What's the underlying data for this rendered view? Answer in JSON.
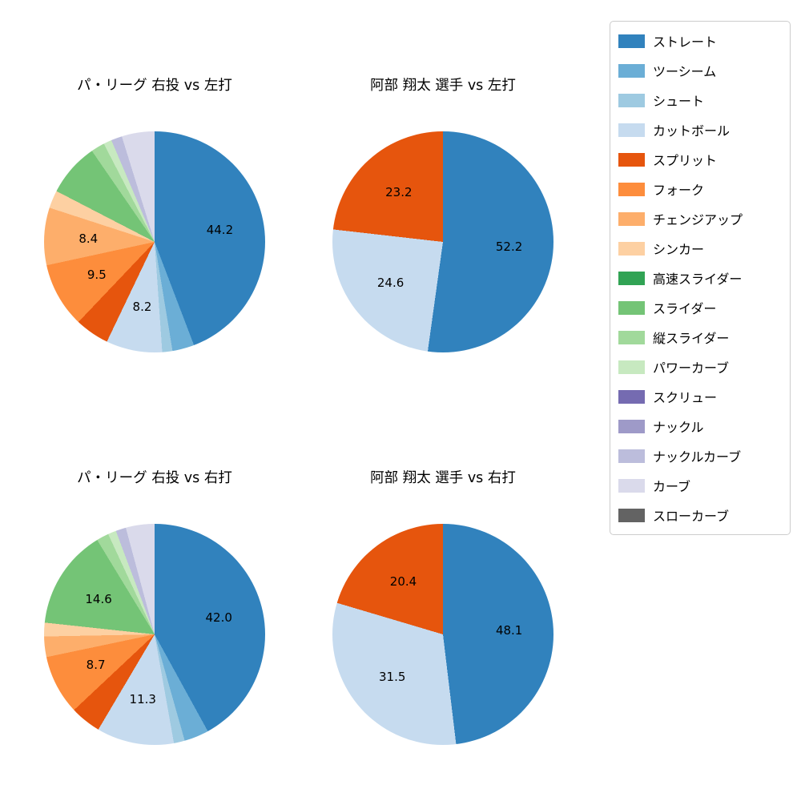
{
  "figure": {
    "background": "#ffffff",
    "label_min_value": 8.0
  },
  "legend": {
    "position": "top-right",
    "items": [
      {
        "label": "ストレート",
        "color": "#3182bd"
      },
      {
        "label": "ツーシーム",
        "color": "#6baed6"
      },
      {
        "label": "シュート",
        "color": "#9ecae1"
      },
      {
        "label": "カットボール",
        "color": "#c6dbef"
      },
      {
        "label": "スプリット",
        "color": "#e6550d"
      },
      {
        "label": "フォーク",
        "color": "#fd8d3c"
      },
      {
        "label": "チェンジアップ",
        "color": "#fdae6b"
      },
      {
        "label": "シンカー",
        "color": "#fdd0a2"
      },
      {
        "label": "高速スライダー",
        "color": "#31a354"
      },
      {
        "label": "スライダー",
        "color": "#74c476"
      },
      {
        "label": "縦スライダー",
        "color": "#a1d99b"
      },
      {
        "label": "パワーカーブ",
        "color": "#c7e9c0"
      },
      {
        "label": "スクリュー",
        "color": "#756bb1"
      },
      {
        "label": "ナックル",
        "color": "#9e9ac8"
      },
      {
        "label": "ナックルカーブ",
        "color": "#bcbddc"
      },
      {
        "label": "カーブ",
        "color": "#dadaeb"
      },
      {
        "label": "スローカーブ",
        "color": "#636363"
      }
    ]
  },
  "chart_data": [
    {
      "type": "pie",
      "title": "パ・リーグ 右投 vs 左打",
      "start_angle": "top",
      "direction": "clockwise",
      "labels": [
        "ストレート",
        "ツーシーム",
        "シュート",
        "カットボール",
        "スプリット",
        "フォーク",
        "チェンジアップ",
        "シンカー",
        "スライダー",
        "縦スライダー",
        "パワーカーブ",
        "ナックルカーブ",
        "カーブ"
      ],
      "values": [
        44.2,
        3.2,
        1.5,
        8.2,
        5.0,
        9.5,
        8.4,
        2.6,
        7.8,
        2.0,
        1.2,
        1.6,
        4.8
      ],
      "shown_value_labels": [
        "44.2",
        "8.2",
        "9.5",
        "8.4"
      ]
    },
    {
      "type": "pie",
      "title": "阿部 翔太 選手 vs 左打",
      "start_angle": "top",
      "direction": "clockwise",
      "labels": [
        "ストレート",
        "カットボール",
        "スプリット"
      ],
      "values": [
        52.2,
        24.6,
        23.2
      ],
      "shown_value_labels": [
        "52.2",
        "24.6",
        "23.2"
      ]
    },
    {
      "type": "pie",
      "title": "パ・リーグ 右投 vs 右打",
      "start_angle": "top",
      "direction": "clockwise",
      "labels": [
        "ストレート",
        "ツーシーム",
        "シュート",
        "カットボール",
        "スプリット",
        "フォーク",
        "チェンジアップ",
        "シンカー",
        "スライダー",
        "縦スライダー",
        "パワーカーブ",
        "ナックルカーブ",
        "カーブ"
      ],
      "values": [
        42.0,
        3.6,
        1.6,
        11.3,
        4.5,
        8.7,
        3.0,
        2.0,
        14.6,
        1.8,
        1.2,
        1.5,
        4.2
      ],
      "shown_value_labels": [
        "42.0",
        "11.3",
        "8.7",
        "14.6"
      ]
    },
    {
      "type": "pie",
      "title": "阿部 翔太 選手 vs 右打",
      "start_angle": "top",
      "direction": "clockwise",
      "labels": [
        "ストレート",
        "カットボール",
        "スプリット"
      ],
      "values": [
        48.1,
        31.5,
        20.4
      ],
      "shown_value_labels": [
        "48.1",
        "31.5",
        "20.4"
      ]
    }
  ]
}
